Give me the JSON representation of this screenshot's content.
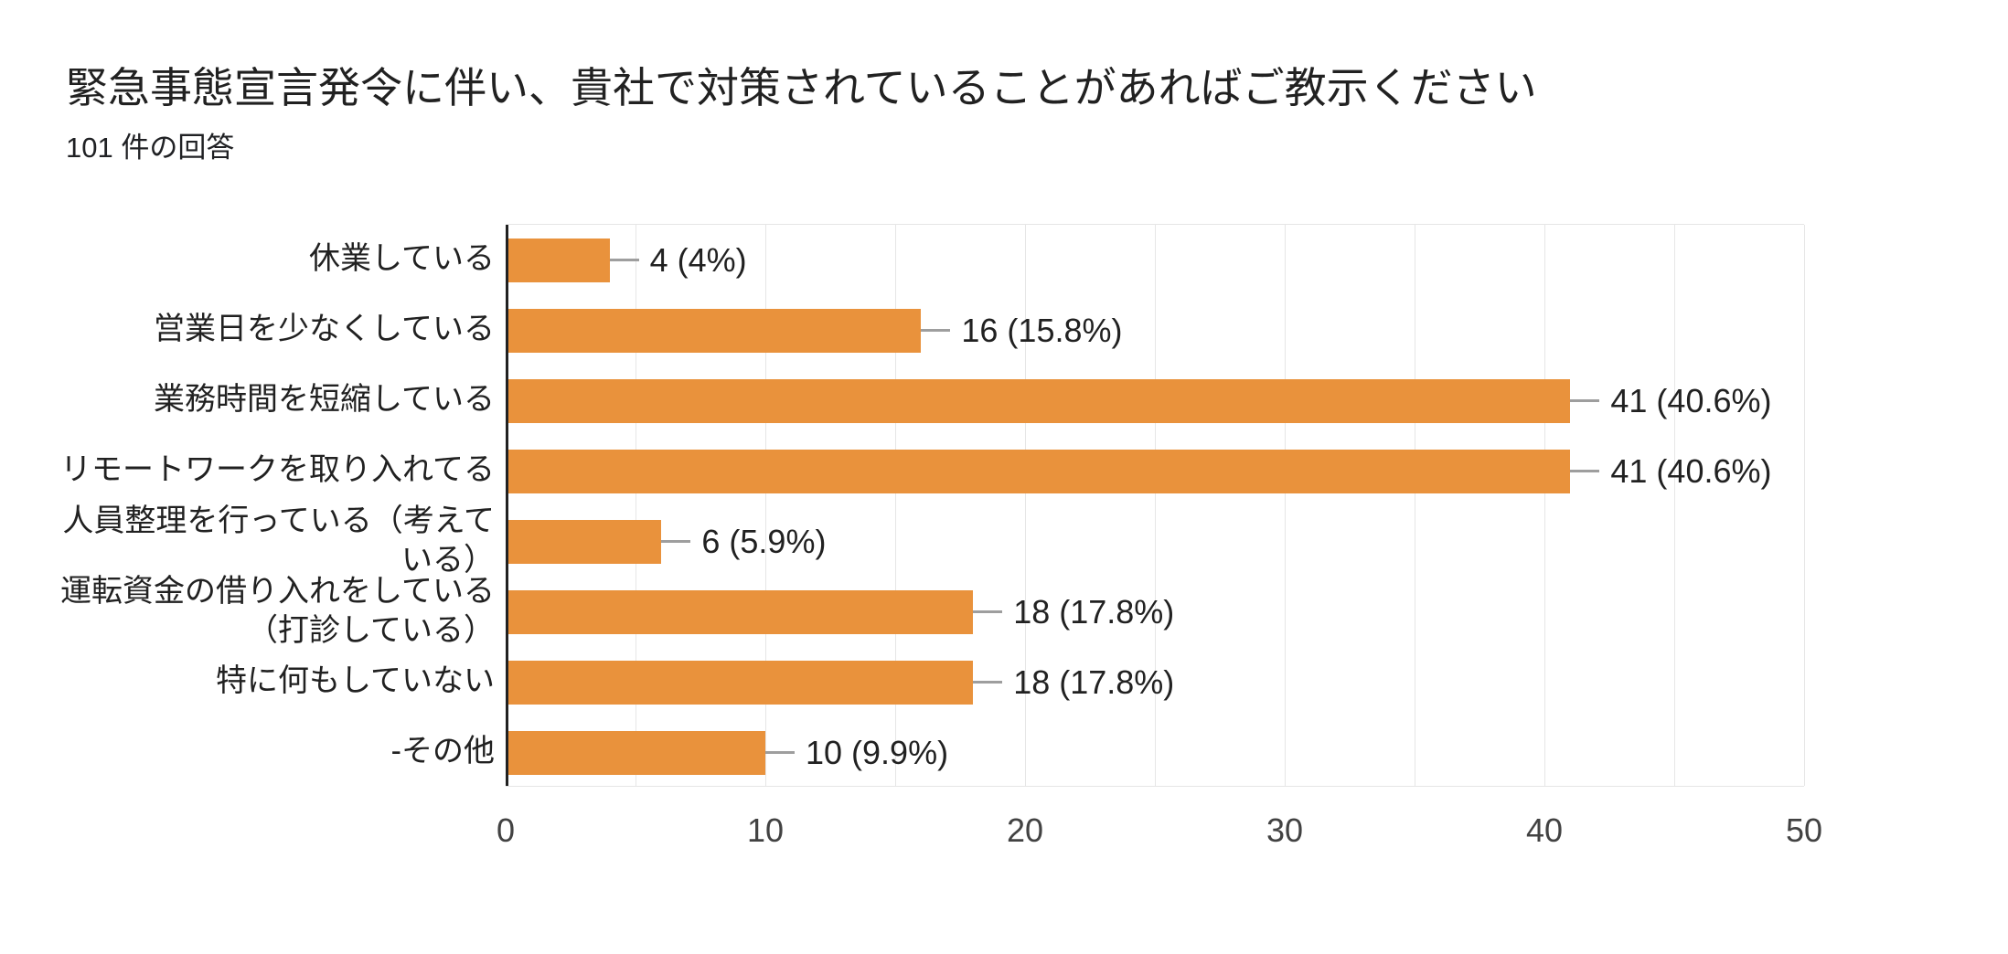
{
  "header": {
    "title": "緊急事態宣言発令に伴い、貴社で対策されていることがあればご教示ください",
    "subtitle": "101 件の回答"
  },
  "chart_data": {
    "type": "bar",
    "orientation": "horizontal",
    "title": "緊急事態宣言発令に伴い、貴社で対策されていることがあればご教示ください",
    "subtitle": "101 件の回答",
    "total_responses": 101,
    "categories": [
      "休業している",
      "営業日を少なくしている",
      "業務時間を短縮している",
      "リモートワークを取り入れてる",
      "人員整理を行っている（考えている）",
      "運転資金の借り入れをしている（打診している）",
      "特に何もしていない",
      "-その他"
    ],
    "category_lines": [
      [
        "休業している"
      ],
      [
        "営業日を少なくしている"
      ],
      [
        "業務時間を短縮している"
      ],
      [
        "リモートワークを取り入れてる"
      ],
      [
        "人員整理を行っている（考えて",
        "いる）"
      ],
      [
        "運転資金の借り入れをしている",
        "（打診している）"
      ],
      [
        "特に何もしていない"
      ],
      [
        "-その他"
      ]
    ],
    "values": [
      4,
      16,
      41,
      41,
      6,
      18,
      18,
      10
    ],
    "value_labels": [
      "4 (4%)",
      "16 (15.8%)",
      "41 (40.6%)",
      "41 (40.6%)",
      "6 (5.9%)",
      "18 (17.8%)",
      "18 (17.8%)",
      "10 (9.9%)"
    ],
    "x_ticks": [
      0,
      10,
      20,
      30,
      40,
      50
    ],
    "xlim": [
      0,
      50
    ],
    "grid_step": 5,
    "grid": true,
    "legend": "none",
    "colors": {
      "bar": "#e9923c",
      "grid": "#e6e6e6",
      "axis": "#212121",
      "connector": "#9e9e9e",
      "label_text": "#212121",
      "tick_text": "#424242",
      "background": "#ffffff"
    }
  }
}
